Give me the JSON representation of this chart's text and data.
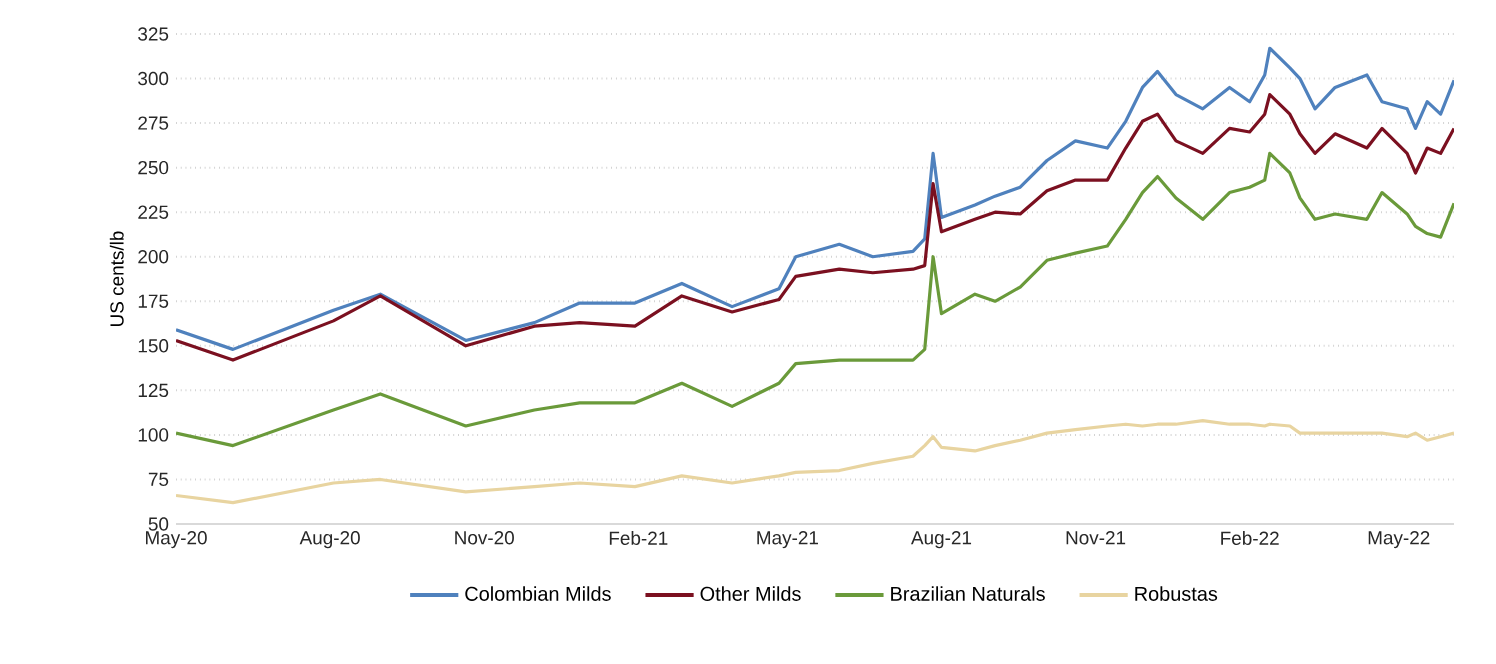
{
  "chart_data": {
    "type": "line",
    "ylabel": "US cents/lb",
    "x": [
      "2020-05-01",
      "2020-06-04",
      "2020-08-03",
      "2020-08-31",
      "2020-10-21",
      "2020-12-01",
      "2020-12-28",
      "2021-01-30",
      "2021-02-27",
      "2021-03-29",
      "2021-04-26",
      "2021-05-06",
      "2021-06-01",
      "2021-06-21",
      "2021-07-15",
      "2021-07-22",
      "2021-07-27",
      "2021-08-01",
      "2021-08-21",
      "2021-09-02",
      "2021-09-17",
      "2021-10-03",
      "2021-10-20",
      "2021-11-08",
      "2021-11-19",
      "2021-11-29",
      "2021-12-08",
      "2021-12-19",
      "2022-01-04",
      "2022-01-20",
      "2022-02-01",
      "2022-02-10",
      "2022-02-13",
      "2022-02-25",
      "2022-03-03",
      "2022-03-12",
      "2022-03-24",
      "2022-04-12",
      "2022-04-21",
      "2022-05-06",
      "2022-05-11",
      "2022-05-18",
      "2022-05-26",
      "2022-06-03"
    ],
    "series": [
      {
        "name": "Colombian Milds",
        "color": "#4f81bd",
        "values": [
          159,
          148,
          170,
          179,
          153,
          163,
          174,
          174,
          185,
          172,
          182,
          200,
          207,
          200,
          203,
          210,
          258,
          222,
          229,
          234,
          239,
          254,
          265,
          261,
          276,
          295,
          304,
          291,
          283,
          295,
          287,
          302,
          317,
          306,
          300,
          283,
          295,
          302,
          287,
          283,
          272,
          287,
          280,
          299
        ]
      },
      {
        "name": "Other Milds",
        "color": "#7b1020",
        "values": [
          153,
          142,
          164,
          178,
          150,
          161,
          163,
          161,
          178,
          169,
          176,
          189,
          193,
          191,
          193,
          195,
          241,
          214,
          221,
          225,
          224,
          237,
          243,
          243,
          261,
          276,
          280,
          265,
          258,
          272,
          270,
          280,
          291,
          280,
          269,
          258,
          269,
          261,
          272,
          258,
          247,
          261,
          258,
          272
        ]
      },
      {
        "name": "Brazilian Naturals",
        "color": "#6a9a3a",
        "values": [
          101,
          94,
          114,
          123,
          105,
          114,
          118,
          118,
          129,
          116,
          129,
          140,
          142,
          142,
          142,
          148,
          200,
          168,
          179,
          175,
          183,
          198,
          202,
          206,
          221,
          236,
          245,
          233,
          221,
          236,
          239,
          243,
          258,
          247,
          233,
          221,
          224,
          221,
          236,
          224,
          217,
          213,
          211,
          230
        ]
      },
      {
        "name": "Robustas",
        "color": "#e8d4a0",
        "values": [
          66,
          62,
          73,
          75,
          68,
          71,
          73,
          71,
          77,
          73,
          77,
          79,
          80,
          84,
          88,
          94,
          99,
          93,
          91,
          94,
          97,
          101,
          103,
          105,
          106,
          105,
          106,
          106,
          108,
          106,
          106,
          105,
          106,
          105,
          101,
          101,
          101,
          101,
          101,
          99,
          101,
          97,
          99,
          101
        ]
      }
    ],
    "xlim": [
      "2020-05-01",
      "2022-06-03"
    ],
    "xticks": [
      {
        "value": "2020-05-01",
        "label": "May-20"
      },
      {
        "value": "2020-08-01",
        "label": "Aug-20"
      },
      {
        "value": "2020-11-01",
        "label": "Nov-20"
      },
      {
        "value": "2021-02-01",
        "label": "Feb-21"
      },
      {
        "value": "2021-05-01",
        "label": "May-21"
      },
      {
        "value": "2021-08-01",
        "label": "Aug-21"
      },
      {
        "value": "2021-11-01",
        "label": "Nov-21"
      },
      {
        "value": "2022-02-01",
        "label": "Feb-22"
      },
      {
        "value": "2022-05-01",
        "label": "May-22"
      }
    ],
    "ylim": [
      50,
      325
    ],
    "yticks": [
      50,
      75,
      100,
      125,
      150,
      175,
      200,
      225,
      250,
      275,
      300,
      325
    ],
    "grid": "y",
    "legend": "bottom",
    "marker": "none",
    "line_style": "solid"
  }
}
